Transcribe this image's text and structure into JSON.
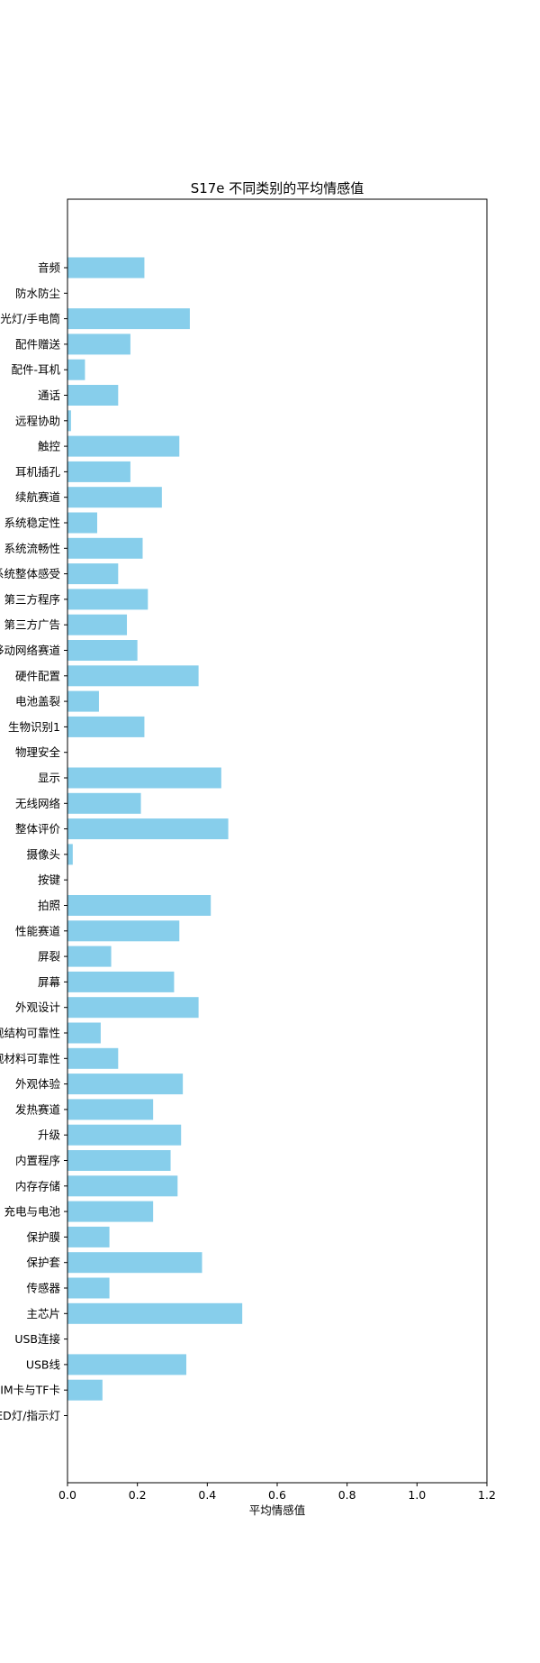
{
  "chart_data": {
    "type": "bar",
    "orientation": "horizontal",
    "title": "S17e 不同类别的平均情感值",
    "xlabel": "平均情感值",
    "ylabel": "",
    "xlim": [
      0,
      1.2
    ],
    "xticks": [
      "0.0",
      "0.2",
      "0.4",
      "0.6",
      "0.8",
      "1.0",
      "1.2"
    ],
    "bar_color": "#87CEEB",
    "grid": false,
    "categories": [
      "音频",
      "防水防尘",
      "闪光灯/手电筒",
      "配件赠送",
      "配件-耳机",
      "通话",
      "远程协助",
      "触控",
      "耳机插孔",
      "续航赛道",
      "系统稳定性",
      "系统流畅性",
      "系统整体感受",
      "第三方程序",
      "第三方广告",
      "移动网络赛道",
      "硬件配置",
      "电池盖裂",
      "生物识别1",
      "物理安全",
      "显示",
      "无线网络",
      "整体评价",
      "摄像头",
      "按键",
      "拍照",
      "性能赛道",
      "屏裂",
      "屏幕",
      "外观设计",
      "外观结构可靠性",
      "外观材料可靠性",
      "外观体验",
      "发热赛道",
      "升级",
      "内置程序",
      "内存存储",
      "充电与电池",
      "保护膜",
      "保护套",
      "传感器",
      "主芯片",
      "USB连接",
      "USB线",
      "SIM卡与TF卡",
      "LED灯/指示灯"
    ],
    "values": [
      0.22,
      0.0,
      0.35,
      0.18,
      0.05,
      0.145,
      0.01,
      0.32,
      0.18,
      0.27,
      0.085,
      0.215,
      0.145,
      0.23,
      0.17,
      0.2,
      0.375,
      0.09,
      0.22,
      0.0,
      0.44,
      0.21,
      0.46,
      0.015,
      0.0,
      0.41,
      0.32,
      0.125,
      0.305,
      0.375,
      0.095,
      0.145,
      0.33,
      0.245,
      0.325,
      0.295,
      0.315,
      0.245,
      0.12,
      0.385,
      0.12,
      0.5,
      0.0,
      0.34,
      0.1,
      0.0
    ]
  }
}
